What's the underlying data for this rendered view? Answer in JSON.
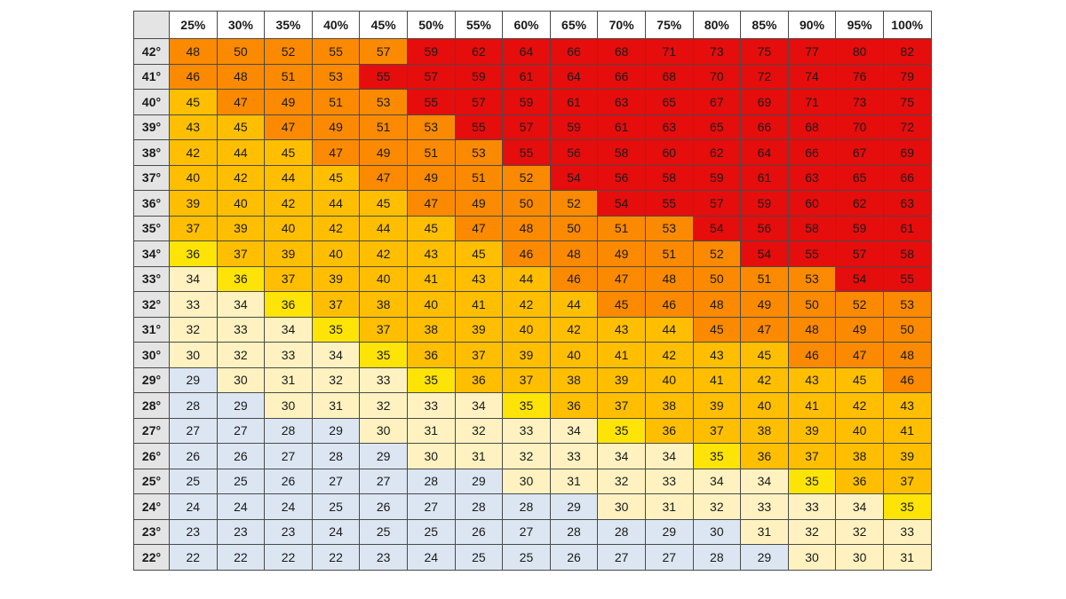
{
  "colors": {
    "cool": "#dce6f2",
    "mild": "#fff2c0",
    "warm": "#fde406",
    "hot": "#ffbf00",
    "very_hot": "#fb8a00",
    "danger": "#e60d0d"
  },
  "chart_data": {
    "type": "heatmap",
    "x_labels": [
      "25%",
      "30%",
      "35%",
      "40%",
      "45%",
      "50%",
      "55%",
      "60%",
      "65%",
      "70%",
      "75%",
      "80%",
      "85%",
      "90%",
      "95%",
      "100%"
    ],
    "y_labels": [
      "42°",
      "41°",
      "40°",
      "39°",
      "38°",
      "37°",
      "36°",
      "35°",
      "34°",
      "33°",
      "32°",
      "31°",
      "30°",
      "29°",
      "28°",
      "27°",
      "26°",
      "25°",
      "24°",
      "23°",
      "22°"
    ],
    "values": [
      [
        48,
        50,
        52,
        55,
        57,
        59,
        62,
        64,
        66,
        68,
        71,
        73,
        75,
        77,
        80,
        82
      ],
      [
        46,
        48,
        51,
        53,
        55,
        57,
        59,
        61,
        64,
        66,
        68,
        70,
        72,
        74,
        76,
        79
      ],
      [
        45,
        47,
        49,
        51,
        53,
        55,
        57,
        59,
        61,
        63,
        65,
        67,
        69,
        71,
        73,
        75
      ],
      [
        43,
        45,
        47,
        49,
        51,
        53,
        55,
        57,
        59,
        61,
        63,
        65,
        66,
        68,
        70,
        72
      ],
      [
        42,
        44,
        45,
        47,
        49,
        51,
        53,
        55,
        56,
        58,
        60,
        62,
        64,
        66,
        67,
        69
      ],
      [
        40,
        42,
        44,
        45,
        47,
        49,
        51,
        52,
        54,
        56,
        58,
        59,
        61,
        63,
        65,
        66
      ],
      [
        39,
        40,
        42,
        44,
        45,
        47,
        49,
        50,
        52,
        54,
        55,
        57,
        59,
        60,
        62,
        63
      ],
      [
        37,
        39,
        40,
        42,
        44,
        45,
        47,
        48,
        50,
        51,
        53,
        54,
        56,
        58,
        59,
        61
      ],
      [
        36,
        37,
        39,
        40,
        42,
        43,
        45,
        46,
        48,
        49,
        51,
        52,
        54,
        55,
        57,
        58
      ],
      [
        34,
        36,
        37,
        39,
        40,
        41,
        43,
        44,
        46,
        47,
        48,
        50,
        51,
        53,
        54,
        55
      ],
      [
        33,
        34,
        36,
        37,
        38,
        40,
        41,
        42,
        44,
        45,
        46,
        48,
        49,
        50,
        52,
        53
      ],
      [
        32,
        33,
        34,
        35,
        37,
        38,
        39,
        40,
        42,
        43,
        44,
        45,
        47,
        48,
        49,
        50
      ],
      [
        30,
        32,
        33,
        34,
        35,
        36,
        37,
        39,
        40,
        41,
        42,
        43,
        45,
        46,
        47,
        48
      ],
      [
        29,
        30,
        31,
        32,
        33,
        35,
        36,
        37,
        38,
        39,
        40,
        41,
        42,
        43,
        45,
        46
      ],
      [
        28,
        29,
        30,
        31,
        32,
        33,
        34,
        35,
        36,
        37,
        38,
        39,
        40,
        41,
        42,
        43
      ],
      [
        27,
        27,
        28,
        29,
        30,
        31,
        32,
        33,
        34,
        35,
        36,
        37,
        38,
        39,
        40,
        41
      ],
      [
        26,
        26,
        27,
        28,
        29,
        30,
        31,
        32,
        33,
        34,
        34,
        35,
        36,
        37,
        38,
        39
      ],
      [
        25,
        25,
        26,
        27,
        27,
        28,
        29,
        30,
        31,
        32,
        33,
        34,
        34,
        35,
        36,
        37
      ],
      [
        24,
        24,
        24,
        25,
        26,
        27,
        28,
        28,
        29,
        30,
        31,
        32,
        33,
        33,
        34,
        35
      ],
      [
        23,
        23,
        23,
        24,
        25,
        25,
        26,
        27,
        28,
        28,
        29,
        30,
        31,
        32,
        32,
        33
      ],
      [
        22,
        22,
        22,
        22,
        23,
        24,
        25,
        25,
        26,
        27,
        27,
        28,
        29,
        30,
        30,
        31
      ]
    ],
    "categories_by_row": [
      "CCCCCDDDDDDDDDDD",
      "CCCCDDDDDDDDDDDD",
      "BCCCCDDDDDDDDDDD",
      "BBCCCCDDDDDDDDDD",
      "BBBCCCCDDDDDDDDD",
      "BBBBCCCCDDDDDDDD",
      "BBBBBCCCCDDDDDDD",
      "BBBBBBCCCCCDDDDD",
      "ABBBBBBCCCCCDDDD",
      "MABBBBBBCCCCCCDD",
      "MMABBBBBBCCCCCCC",
      "MMMABBBBBBBCCCCC",
      "MMMMABBBBBBBBCCC",
      "KMMMMABBBBBBBBBC",
      "KKMMMMMABBBBBBBB",
      "KKKKMMMMMABBBBBB",
      "KKKKKMMMMMMABBBB",
      "KKKKKKKMMMMMMABB",
      "KKKKKKKKKMMMMMMA",
      "KKKKKKKKKKKKMMMM",
      "KKKKKKKKKKKKKMMM"
    ]
  }
}
